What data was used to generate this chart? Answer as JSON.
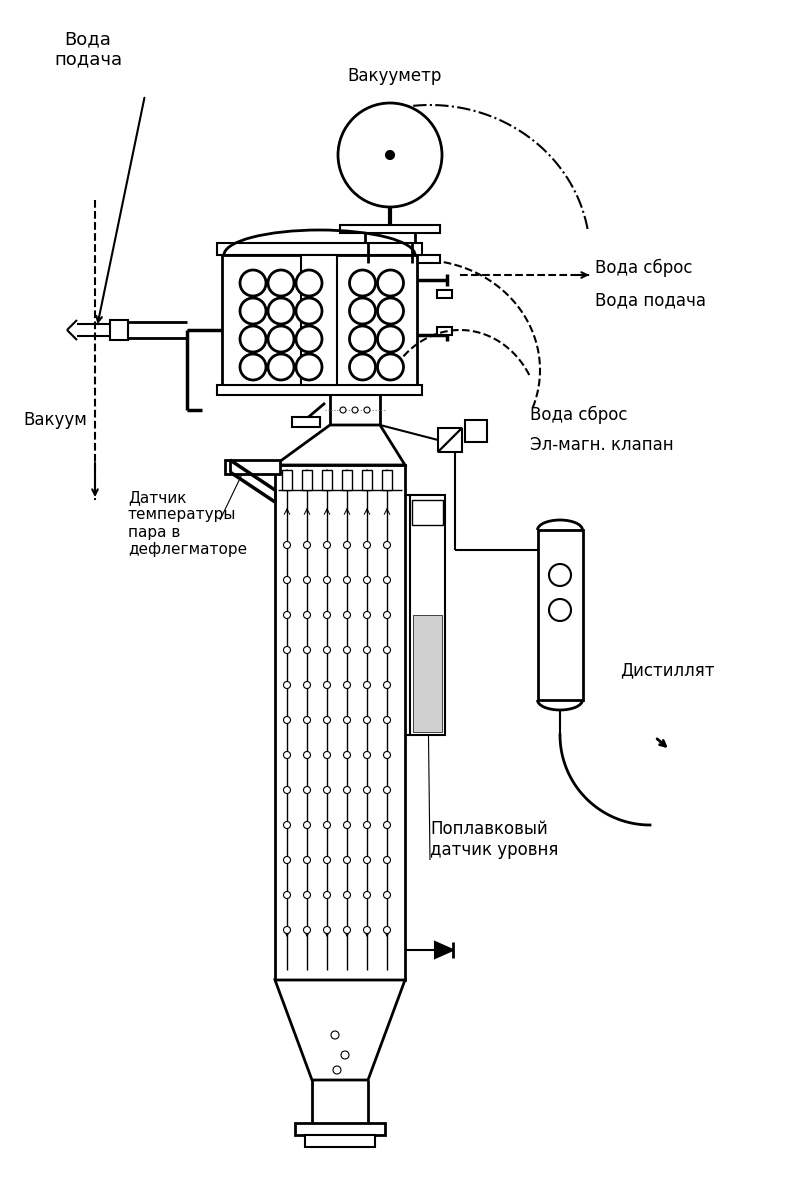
{
  "bg_color": "#ffffff",
  "line_color": "#000000",
  "labels": {
    "voda_podacha_top": "Вода\nподача",
    "vakuumetr": "Вакууметр",
    "voda_sbros_top": "Вода сброс",
    "voda_podacha_right": "Вода подача",
    "vakuum": "Вакуум",
    "voda_sbros_mid": "Вода сброс",
    "el_magn_klapan": "Эл-магн. клапан",
    "datchik_temp": "Датчик\nтемпературы\nпара в\nдефлегматоре",
    "distillat": "Дистиллят",
    "poplavkovy": "Поплавковый\nдатчик уровня"
  }
}
